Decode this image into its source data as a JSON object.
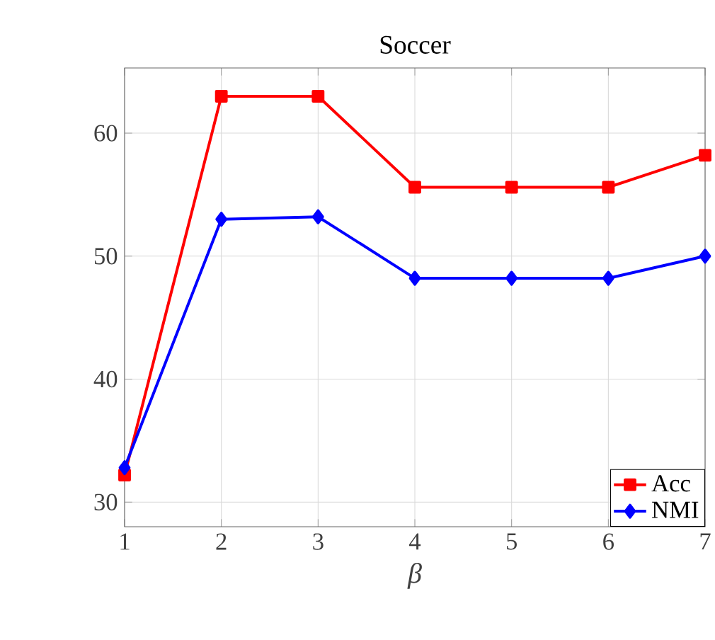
{
  "chart_data": {
    "type": "line",
    "title": "Soccer",
    "xlabel": "β",
    "x": [
      1,
      2,
      3,
      4,
      5,
      6,
      7
    ],
    "xlim": [
      1,
      7
    ],
    "xticks": [
      1,
      2,
      3,
      4,
      5,
      6,
      7
    ],
    "ylim": [
      28,
      65.3
    ],
    "yticks": [
      30,
      40,
      50,
      60
    ],
    "grid": true,
    "legend": "bottom right",
    "series": [
      {
        "name": "Acc",
        "color": "#ff0000",
        "marker": "square",
        "values": [
          32.2,
          63.0,
          63.0,
          55.6,
          55.6,
          55.6,
          58.2
        ]
      },
      {
        "name": "NMI",
        "color": "#0000ff",
        "marker": "diamond",
        "values": [
          32.8,
          53.0,
          53.2,
          48.2,
          48.2,
          48.2,
          50.0
        ]
      }
    ]
  }
}
